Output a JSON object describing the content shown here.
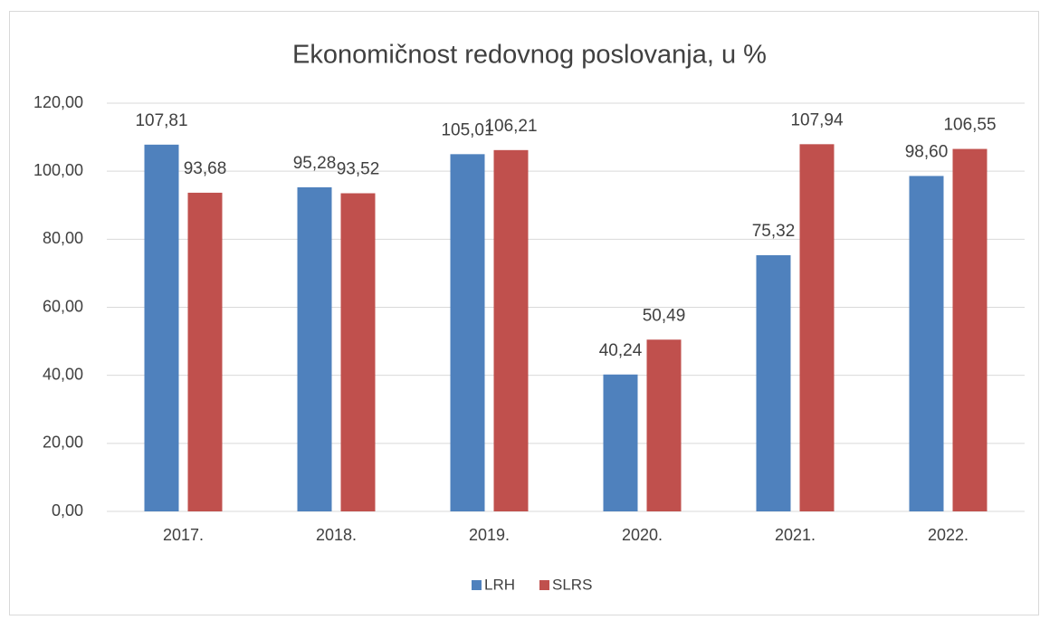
{
  "chart_data": {
    "type": "bar",
    "title": "Ekonomičnost redovnog poslovanja, u %",
    "categories": [
      "2017.",
      "2018.",
      "2019.",
      "2020.",
      "2021.",
      "2022."
    ],
    "series": [
      {
        "name": "LRH",
        "color": "#4f81bd",
        "values": [
          107.81,
          95.28,
          105.01,
          40.24,
          75.32,
          98.6
        ],
        "value_labels": [
          "107,81",
          "95,28",
          "105,01",
          "40,24",
          "75,32",
          "98,60"
        ]
      },
      {
        "name": "SLRS",
        "color": "#c0504d",
        "values": [
          93.68,
          93.52,
          106.21,
          50.49,
          107.94,
          106.55
        ],
        "value_labels": [
          "93,68",
          "93,52",
          "106,21",
          "50,49",
          "107,94",
          "106,55"
        ]
      }
    ],
    "ylim": [
      0,
      120
    ],
    "yticks": [
      {
        "value": 0,
        "label": "0,00"
      },
      {
        "value": 20,
        "label": "20,00"
      },
      {
        "value": 40,
        "label": "40,00"
      },
      {
        "value": 60,
        "label": "60,00"
      },
      {
        "value": 80,
        "label": "80,00"
      },
      {
        "value": 100,
        "label": "100,00"
      },
      {
        "value": 120,
        "label": "120,00"
      }
    ],
    "grid": true,
    "legend": "bottom"
  }
}
